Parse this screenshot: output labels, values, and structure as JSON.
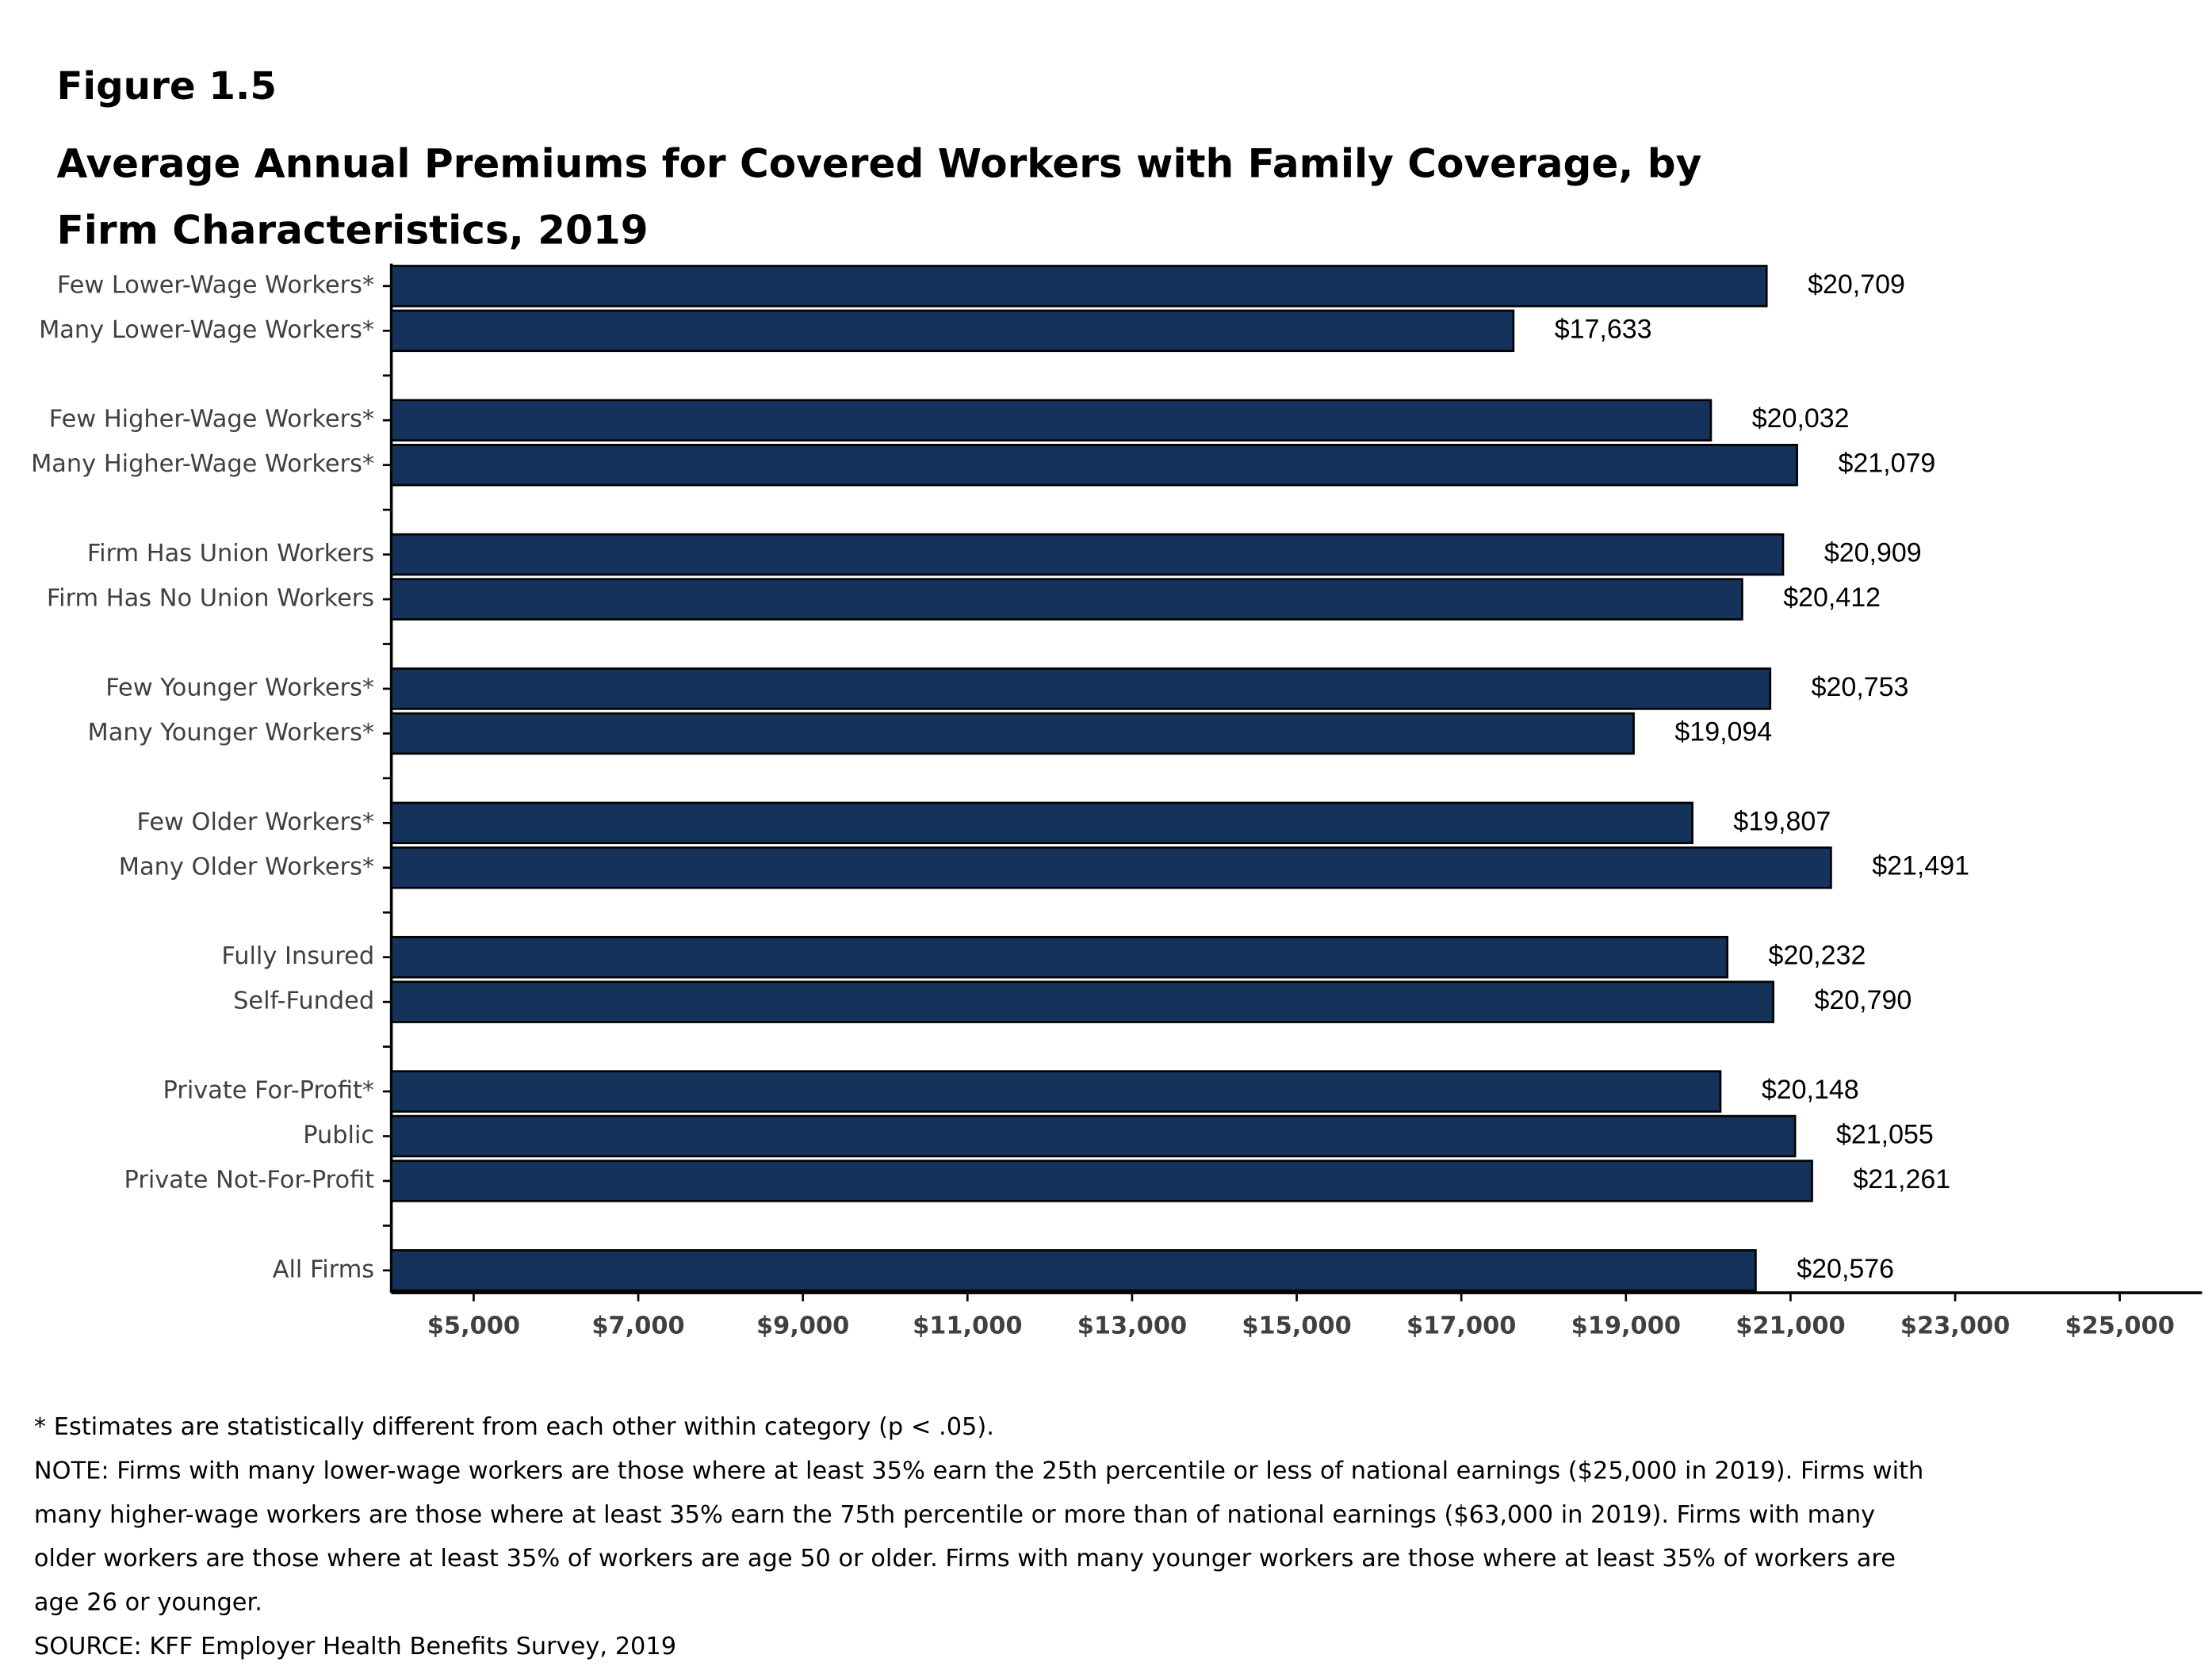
{
  "chart_data": {
    "type": "bar",
    "orientation": "horizontal",
    "figure_label": "Figure 1.5",
    "title": "Average Annual Premiums for Covered Workers with Family Coverage, by Firm Characteristics, 2019",
    "categories": [
      "Few Lower-Wage Workers*",
      "Many Lower-Wage Workers*",
      null,
      "Few Higher-Wage Workers*",
      "Many Higher-Wage Workers*",
      null,
      "Firm Has Union Workers",
      "Firm Has No Union Workers",
      null,
      "Few Younger Workers*",
      "Many Younger Workers*",
      null,
      "Few Older Workers*",
      "Many Older Workers*",
      null,
      "Fully Insured",
      "Self-Funded",
      null,
      "Private For-Profit*",
      "Public",
      "Private Not-For-Profit",
      null,
      "All Firms"
    ],
    "values": [
      20709,
      17633,
      null,
      20032,
      21079,
      null,
      20909,
      20412,
      null,
      20753,
      19094,
      null,
      19807,
      21491,
      null,
      20232,
      20790,
      null,
      20148,
      21055,
      21261,
      null,
      20576
    ],
    "value_labels": [
      "$20,709",
      "$17,633",
      null,
      "$20,032",
      "$21,079",
      null,
      "$20,909",
      "$20,412",
      null,
      "$20,753",
      "$19,094",
      null,
      "$19,807",
      "$21,491",
      null,
      "$20,232",
      "$20,790",
      null,
      "$20,148",
      "$21,055",
      "$21,261",
      null,
      "$20,576"
    ],
    "color": "#15325a",
    "xlim": [
      4000,
      26000
    ],
    "xticks": [
      {
        "value": 5000,
        "label": "$5,000"
      },
      {
        "value": 7000,
        "label": "$7,000"
      },
      {
        "value": 9000,
        "label": "$9,000"
      },
      {
        "value": 11000,
        "label": "$11,000"
      },
      {
        "value": 13000,
        "label": "$13,000"
      },
      {
        "value": 15000,
        "label": "$15,000"
      },
      {
        "value": 17000,
        "label": "$17,000"
      },
      {
        "value": 19000,
        "label": "$19,000"
      },
      {
        "value": 21000,
        "label": "$21,000"
      },
      {
        "value": 23000,
        "label": "$23,000"
      },
      {
        "value": 25000,
        "label": "$25,000"
      }
    ],
    "footnote": "* Estimates are statistically different from each other within category (p < .05).",
    "note": "NOTE: Firms with many lower-wage workers are those where at least 35% earn the 25th percentile or less of national earnings ($25,000 in 2019). Firms with many higher-wage workers are those where at least 35% earn the 75th percentile or more than of national earnings ($63,000 in 2019). Firms with many older workers are those where at least 35% of workers are age 50 or older. Firms with many younger workers are those where at least 35% of workers are age 26 or younger.",
    "source": "SOURCE: KFF Employer Health Benefits Survey, 2019"
  }
}
